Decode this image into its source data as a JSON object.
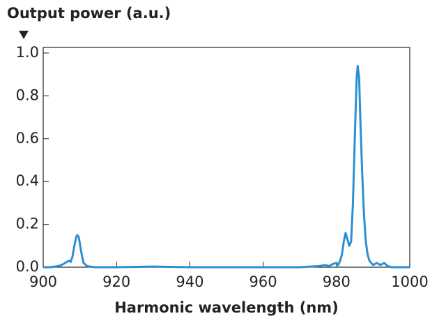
{
  "chart_data": {
    "type": "line",
    "title": "Output power (a.u.)",
    "x_label": "Harmonic wavelength (nm)",
    "series": [
      {
        "color": "#2b8fd4",
        "x": [
          900,
          902,
          904,
          905,
          906,
          907,
          907.5,
          908,
          908.5,
          909,
          909.3,
          909.7,
          910,
          910.5,
          911,
          912,
          914,
          920,
          930,
          940,
          950,
          960,
          970,
          975,
          977,
          978,
          979,
          980,
          980.5,
          981,
          981.5,
          982,
          982.5,
          983,
          983.5,
          984,
          984.5,
          985,
          985.5,
          985.8,
          986.2,
          986.5,
          987,
          987.5,
          988,
          988.5,
          989,
          990,
          991,
          992,
          993,
          994,
          995,
          1000
        ],
        "values": [
          0,
          0,
          0.005,
          0.01,
          0.02,
          0.03,
          0.025,
          0.05,
          0.1,
          0.14,
          0.15,
          0.14,
          0.11,
          0.06,
          0.02,
          0.005,
          0,
          0,
          0.003,
          0,
          0,
          0,
          0,
          0.005,
          0.01,
          0.005,
          0.015,
          0.02,
          0.01,
          0.03,
          0.06,
          0.12,
          0.16,
          0.13,
          0.1,
          0.12,
          0.3,
          0.6,
          0.88,
          0.94,
          0.88,
          0.7,
          0.45,
          0.25,
          0.12,
          0.06,
          0.03,
          0.01,
          0.02,
          0.01,
          0.02,
          0.005,
          0,
          0
        ]
      }
    ],
    "xlim": [
      900,
      1000
    ],
    "xticks": [
      900,
      920,
      940,
      960,
      980,
      1000
    ],
    "ylim": [
      0,
      1
    ],
    "yticks": [
      {
        "value": 0,
        "label": "0.0"
      },
      0.2,
      0.4,
      0.6,
      0.8,
      {
        "value": 1,
        "label": "1.0"
      }
    ]
  }
}
